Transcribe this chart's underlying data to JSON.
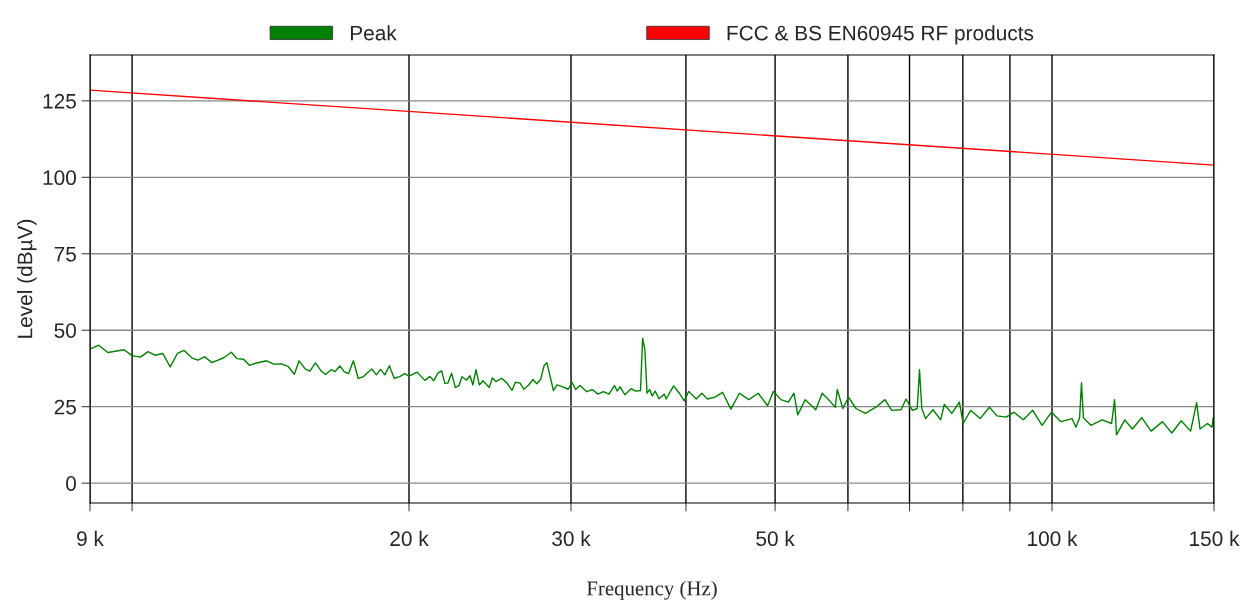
{
  "chart_data": {
    "type": "line",
    "xlabel": "Frequency (Hz)",
    "ylabel": "Level (dBµV)",
    "log": "x",
    "xlim": [
      9000,
      150000
    ],
    "ylim": [
      -6.5,
      140
    ],
    "xticks": [
      {
        "value": 9000,
        "label": "9 k"
      },
      {
        "value": 10000,
        "label": null
      },
      {
        "value": 20000,
        "label": "20 k"
      },
      {
        "value": 30000,
        "label": "30 k"
      },
      {
        "value": 40000,
        "label": null
      },
      {
        "value": 50000,
        "label": "50 k"
      },
      {
        "value": 60000,
        "label": null
      },
      {
        "value": 70000,
        "label": null
      },
      {
        "value": 80000,
        "label": null
      },
      {
        "value": 90000,
        "label": null
      },
      {
        "value": 100000,
        "label": "100 k"
      },
      {
        "value": 150000,
        "label": "150 k"
      }
    ],
    "yticks": [
      0,
      25,
      50,
      75,
      100,
      125
    ],
    "grid": true,
    "legend": "top",
    "marker": "none",
    "line_style": "solid",
    "series": [
      {
        "name": "Peak",
        "color": "#008000",
        "x": [
          9010,
          9200,
          9410,
          9800,
          10000,
          10210,
          10410,
          10600,
          10800,
          11000,
          11200,
          11390,
          11620,
          11790,
          11990,
          12210,
          12580,
          12820,
          13000,
          13220,
          13420,
          13620,
          14000,
          14260,
          14530,
          14770,
          15010,
          15190,
          15430,
          15610,
          15820,
          16060,
          16230,
          16460,
          16620,
          16820,
          17010,
          17190,
          17400,
          17610,
          17840,
          18010,
          18230,
          18430,
          18620,
          18830,
          19040,
          19270,
          19540,
          19780,
          20000,
          20410,
          20810,
          21080,
          21280,
          21500,
          21700,
          21880,
          22040,
          22250,
          22460,
          22670,
          22830,
          23090,
          23300,
          23470,
          23650,
          23850,
          24070,
          24450,
          24640,
          24860,
          25220,
          25560,
          25880,
          26100,
          26410,
          26660,
          26980,
          27280,
          27540,
          27800,
          28050,
          28240,
          28520,
          28710,
          28970,
          29380,
          29790,
          30070,
          30350,
          30690,
          31210,
          31640,
          32090,
          32530,
          32990,
          33450,
          33670,
          33920,
          34330,
          34880,
          35260,
          35700,
          35890,
          36090,
          36290,
          36530,
          36760,
          37040,
          37390,
          37900,
          38060,
          38790,
          39340,
          39830,
          40280,
          41040,
          41620,
          42220,
          43020,
          43840,
          44760,
          45730,
          46820,
          47930,
          49070,
          49790,
          50730,
          51690,
          52420,
          52920,
          53920,
          55360,
          56250,
          57320,
          58130,
          58420,
          59240,
          60080,
          61230,
          62690,
          64470,
          65820,
          66950,
          68540,
          69390,
          70510,
          71360,
          71770,
          72190,
          72860,
          74240,
          75670,
          76370,
          77830,
          79300,
          80060,
          81580,
          83520,
          85500,
          87130,
          89190,
          90900,
          93070,
          95280,
          97550,
          99880,
          102250,
          105160,
          106160,
          107150,
          107660,
          108180,
          110220,
          113380,
          116080,
          116960,
          117520,
          119980,
          122260,
          125180,
          128160,
          131840,
          134970,
          138180,
          141470,
          143610,
          144840,
          147590,
          149250,
          149700
        ],
        "values": [
          43.9,
          45.1,
          42.7,
          43.6,
          41.7,
          41.2,
          43.0,
          41.8,
          42.4,
          38.0,
          42.4,
          43.4,
          40.9,
          40.2,
          41.3,
          39.4,
          41.0,
          42.8,
          40.7,
          40.5,
          38.5,
          39.2,
          40.0,
          38.9,
          39.0,
          38.2,
          35.6,
          40.0,
          37.3,
          36.6,
          39.3,
          36.6,
          35.5,
          37.1,
          36.5,
          38.3,
          36.4,
          35.8,
          40.0,
          34.2,
          34.8,
          36.0,
          37.3,
          35.4,
          37.2,
          35.4,
          38.4,
          34.3,
          34.8,
          35.8,
          35.0,
          36.3,
          33.6,
          34.9,
          33.5,
          36.0,
          36.7,
          32.6,
          32.7,
          35.9,
          31.3,
          31.9,
          34.8,
          33.7,
          35.1,
          32.1,
          37.1,
          32.1,
          33.5,
          31.3,
          34.4,
          33.2,
          34.3,
          32.7,
          30.3,
          33.0,
          32.7,
          30.7,
          32.1,
          33.9,
          32.5,
          33.9,
          38.5,
          39.4,
          33.9,
          30.3,
          32.1,
          31.5,
          30.7,
          33.0,
          30.6,
          31.9,
          29.9,
          30.6,
          29.1,
          29.9,
          29.1,
          31.9,
          30.1,
          31.5,
          28.9,
          30.9,
          30.1,
          30.3,
          47.3,
          43.7,
          29.4,
          30.6,
          28.5,
          30.1,
          27.6,
          29.1,
          27.5,
          31.8,
          29.4,
          26.9,
          30.0,
          27.5,
          29.4,
          27.5,
          28.1,
          29.7,
          24.2,
          29.4,
          27.3,
          29.4,
          25.3,
          30.0,
          27.3,
          26.5,
          29.4,
          22.3,
          27.3,
          24.0,
          29.4,
          26.9,
          24.8,
          30.6,
          24.4,
          28.1,
          24.4,
          22.8,
          25.0,
          27.3,
          23.8,
          24.0,
          27.5,
          23.8,
          24.4,
          37.1,
          24.4,
          21.1,
          24.0,
          20.7,
          25.7,
          22.8,
          26.5,
          19.5,
          23.8,
          21.1,
          24.8,
          22.0,
          21.6,
          23.2,
          20.7,
          23.8,
          18.9,
          23.2,
          20.1,
          21.1,
          18.3,
          21.4,
          32.8,
          21.4,
          18.9,
          20.7,
          19.5,
          27.3,
          15.8,
          20.7,
          17.7,
          21.4,
          17.0,
          20.1,
          16.4,
          20.4,
          17.0,
          26.3,
          17.7,
          19.5,
          18.3,
          21.4
        ]
      },
      {
        "name": "FCC & BS EN60945 RF products",
        "color": "#ff0000",
        "x": [
          9000,
          150000
        ],
        "values": [
          128.5,
          104
        ]
      }
    ]
  }
}
